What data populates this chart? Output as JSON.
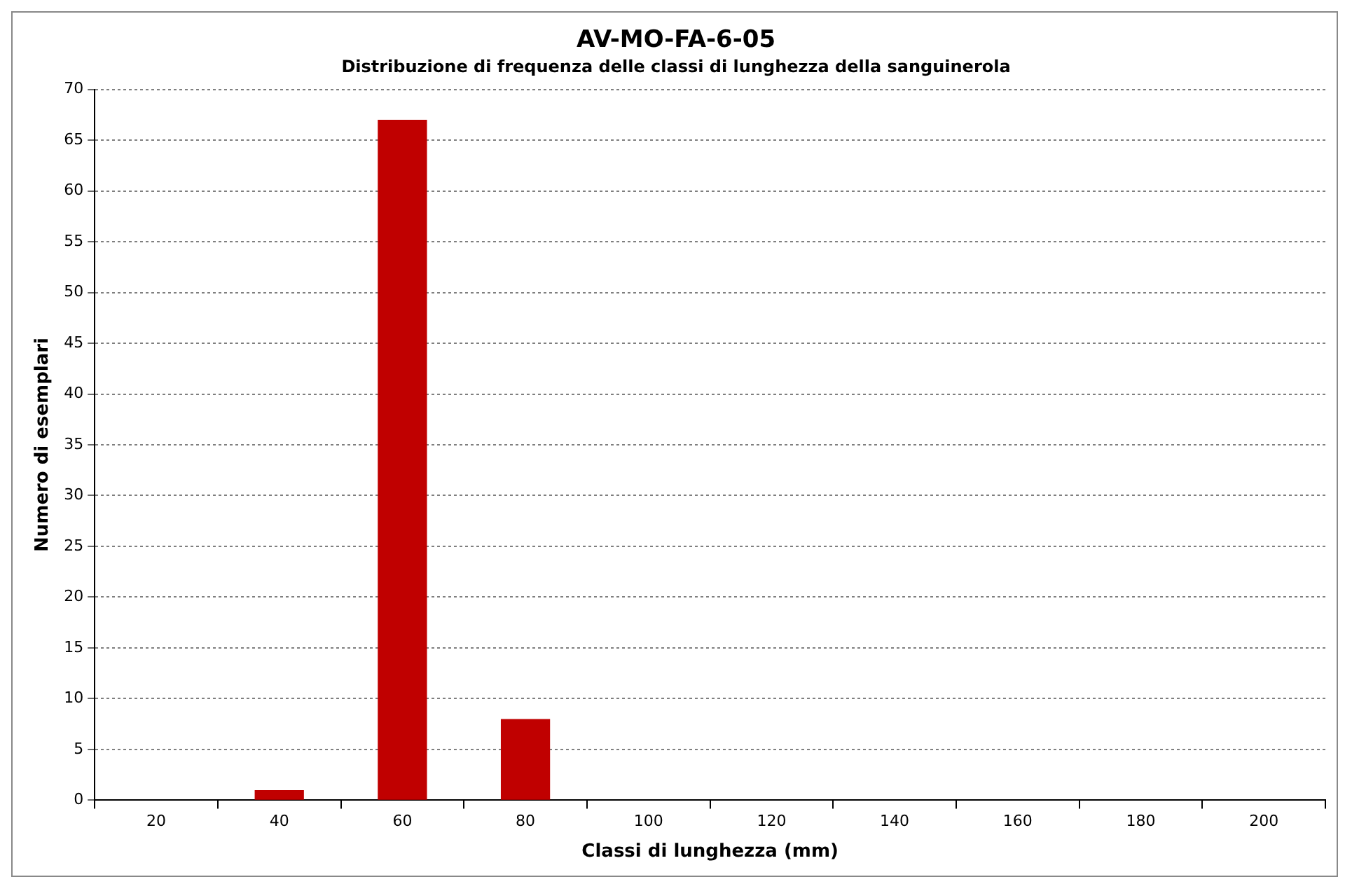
{
  "chart_data": {
    "type": "bar",
    "title": "AV-MO-FA-6-05",
    "subtitle": "Distribuzione di frequenza delle classi di lunghezza della sanguinerola",
    "xlabel": "Classi di lunghezza (mm)",
    "ylabel": "Numero di esemplari",
    "categories": [
      "20",
      "40",
      "60",
      "80",
      "100",
      "120",
      "140",
      "160",
      "180",
      "200"
    ],
    "values": [
      0,
      1,
      67,
      8,
      0,
      0,
      0,
      0,
      0,
      0
    ],
    "color": "#c00000",
    "ylim": [
      0,
      70
    ],
    "yticks": [
      0,
      5,
      10,
      15,
      20,
      25,
      30,
      35,
      40,
      45,
      50,
      55,
      60,
      65,
      70
    ],
    "grid": "y",
    "legend": false
  }
}
